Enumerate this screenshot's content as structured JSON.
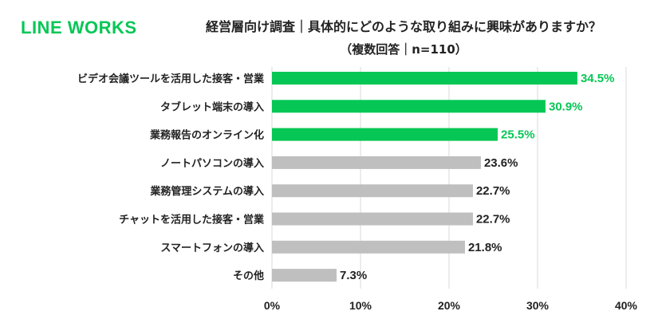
{
  "brand": {
    "logo_text": "LINE WORKS",
    "logo_color": "#06c755"
  },
  "chart_data": {
    "type": "bar",
    "orientation": "horizontal",
    "title": "経営層向け調査｜具体的にどのような取り組みに興味がありますか？",
    "subtitle": "（複数回答｜n=110）",
    "categories": [
      "ビデオ会議ツールを活用した接客・営業",
      "タブレット端末の導入",
      "業務報告のオンライン化",
      "ノートパソコンの導入",
      "業務管理システムの導入",
      "チャットを活用した接客・営業",
      "スマートフォンの導入",
      "その他"
    ],
    "values": [
      34.5,
      30.9,
      25.5,
      23.6,
      22.7,
      22.7,
      21.8,
      7.3
    ],
    "data_labels": [
      "34.5%",
      "30.9%",
      "25.5%",
      "23.6%",
      "22.7%",
      "22.7%",
      "21.8%",
      "7.3%"
    ],
    "highlighted_count": 3,
    "xlim": [
      0,
      40
    ],
    "x_ticks": [
      0,
      10,
      20,
      30,
      40
    ],
    "x_tick_labels": [
      "0%",
      "10%",
      "20%",
      "30%",
      "40%"
    ],
    "xlabel": "",
    "ylabel": "",
    "grid": "vertical",
    "legend": "none",
    "colors": {
      "highlight": "#06c755",
      "normal": "#bfbfbf",
      "highlight_label": "#06c755",
      "normal_label": "#222222",
      "gridline": "#d9d9d9",
      "text": "#222222"
    }
  }
}
